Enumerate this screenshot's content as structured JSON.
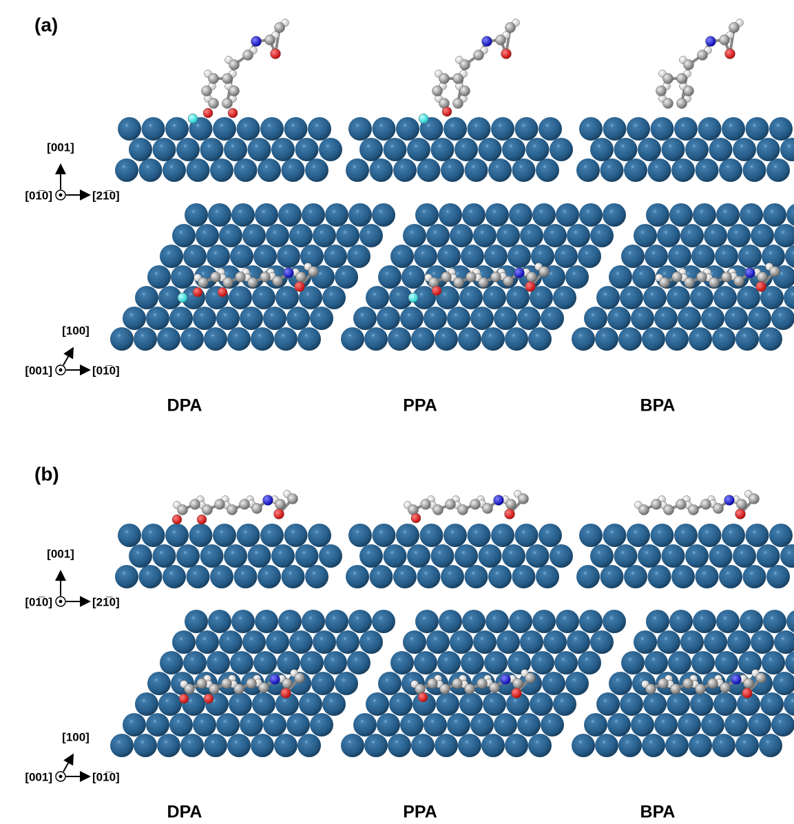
{
  "panels": [
    {
      "label": "(a)",
      "side_view_axes": {
        "up": "[001]",
        "out": "[01̅0]",
        "right": "[21̅0]"
      },
      "top_view_axes": {
        "up": "[100]",
        "out": "[001]",
        "right": "[01̅0]"
      },
      "molecules": [
        "DPA",
        "PPA",
        "BPA"
      ]
    },
    {
      "label": "(b)",
      "side_view_axes": {
        "up": "[001]",
        "out": "[01̅0]",
        "right": "[21̅0]"
      },
      "top_view_axes": {
        "up": "[100]",
        "out": "[001]",
        "right": "[01̅0]"
      },
      "molecules": [
        "DPA",
        "PPA",
        "BPA"
      ]
    }
  ]
}
